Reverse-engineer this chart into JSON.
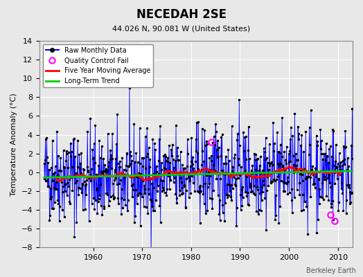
{
  "title": "NECEDAH 2SE",
  "subtitle": "44.026 N, 90.081 W (United States)",
  "ylabel": "Temperature Anomaly (°C)",
  "credit": "Berkeley Earth",
  "ylim": [
    -8,
    14
  ],
  "yticks": [
    -8,
    -6,
    -4,
    -2,
    0,
    2,
    4,
    6,
    8,
    10,
    12,
    14
  ],
  "xlim_start": 1950,
  "xlim_end": 2013,
  "xticks": [
    1960,
    1970,
    1980,
    1990,
    2000,
    2010
  ],
  "raw_line_color": "#0000ff",
  "raw_marker_color": "#000000",
  "qc_fail_color": "#ff00ff",
  "moving_avg_color": "#ff0000",
  "trend_color": "#00cc00",
  "background_color": "#e8e8e8",
  "grid_color": "#ffffff",
  "seed": 42
}
